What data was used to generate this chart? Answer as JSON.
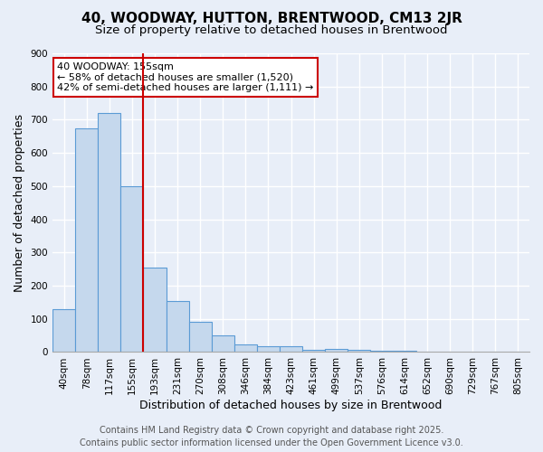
{
  "title_line1": "40, WOODWAY, HUTTON, BRENTWOOD, CM13 2JR",
  "title_line2": "Size of property relative to detached houses in Brentwood",
  "xlabel": "Distribution of detached houses by size in Brentwood",
  "ylabel": "Number of detached properties",
  "categories": [
    "40sqm",
    "78sqm",
    "117sqm",
    "155sqm",
    "193sqm",
    "231sqm",
    "270sqm",
    "308sqm",
    "346sqm",
    "384sqm",
    "423sqm",
    "461sqm",
    "499sqm",
    "537sqm",
    "576sqm",
    "614sqm",
    "652sqm",
    "690sqm",
    "729sqm",
    "767sqm",
    "805sqm"
  ],
  "values": [
    130,
    675,
    720,
    500,
    255,
    155,
    90,
    50,
    22,
    18,
    17,
    8,
    10,
    8,
    5,
    3,
    2,
    2,
    1,
    1,
    1
  ],
  "bar_color": "#c5d8ed",
  "bar_edge_color": "#5b9bd5",
  "red_line_x": 3,
  "annotation_text": "40 WOODWAY: 155sqm\n← 58% of detached houses are smaller (1,520)\n42% of semi-detached houses are larger (1,111) →",
  "annotation_box_color": "#ffffff",
  "annotation_box_edge_color": "#cc0000",
  "ylim": [
    0,
    900
  ],
  "yticks": [
    0,
    100,
    200,
    300,
    400,
    500,
    600,
    700,
    800,
    900
  ],
  "background_color": "#e8eef8",
  "grid_color": "#ffffff",
  "footer_text": "Contains HM Land Registry data © Crown copyright and database right 2025.\nContains public sector information licensed under the Open Government Licence v3.0.",
  "title_fontsize": 11,
  "subtitle_fontsize": 9.5,
  "tick_fontsize": 7.5,
  "label_fontsize": 9,
  "footer_fontsize": 7,
  "annotation_fontsize": 8
}
